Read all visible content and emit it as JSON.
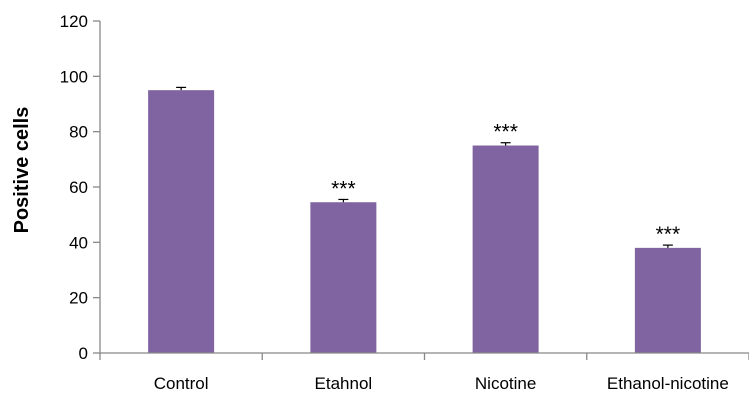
{
  "chart_data": {
    "type": "bar",
    "categories": [
      "Control",
      "Etahnol",
      "Nicotine",
      "Ethanol-nicotine"
    ],
    "values": [
      95,
      54.5,
      75,
      38
    ],
    "error": [
      1,
      1,
      1,
      1
    ],
    "annotations": [
      "",
      "***",
      "***",
      "***"
    ],
    "title": "",
    "xlabel": "",
    "ylabel": "Positive cells",
    "ylim": [
      0,
      120
    ],
    "yticks": [
      0,
      20,
      40,
      60,
      80,
      100,
      120
    ],
    "grid": false,
    "legend": "none",
    "bar_color": "#8064A2"
  }
}
